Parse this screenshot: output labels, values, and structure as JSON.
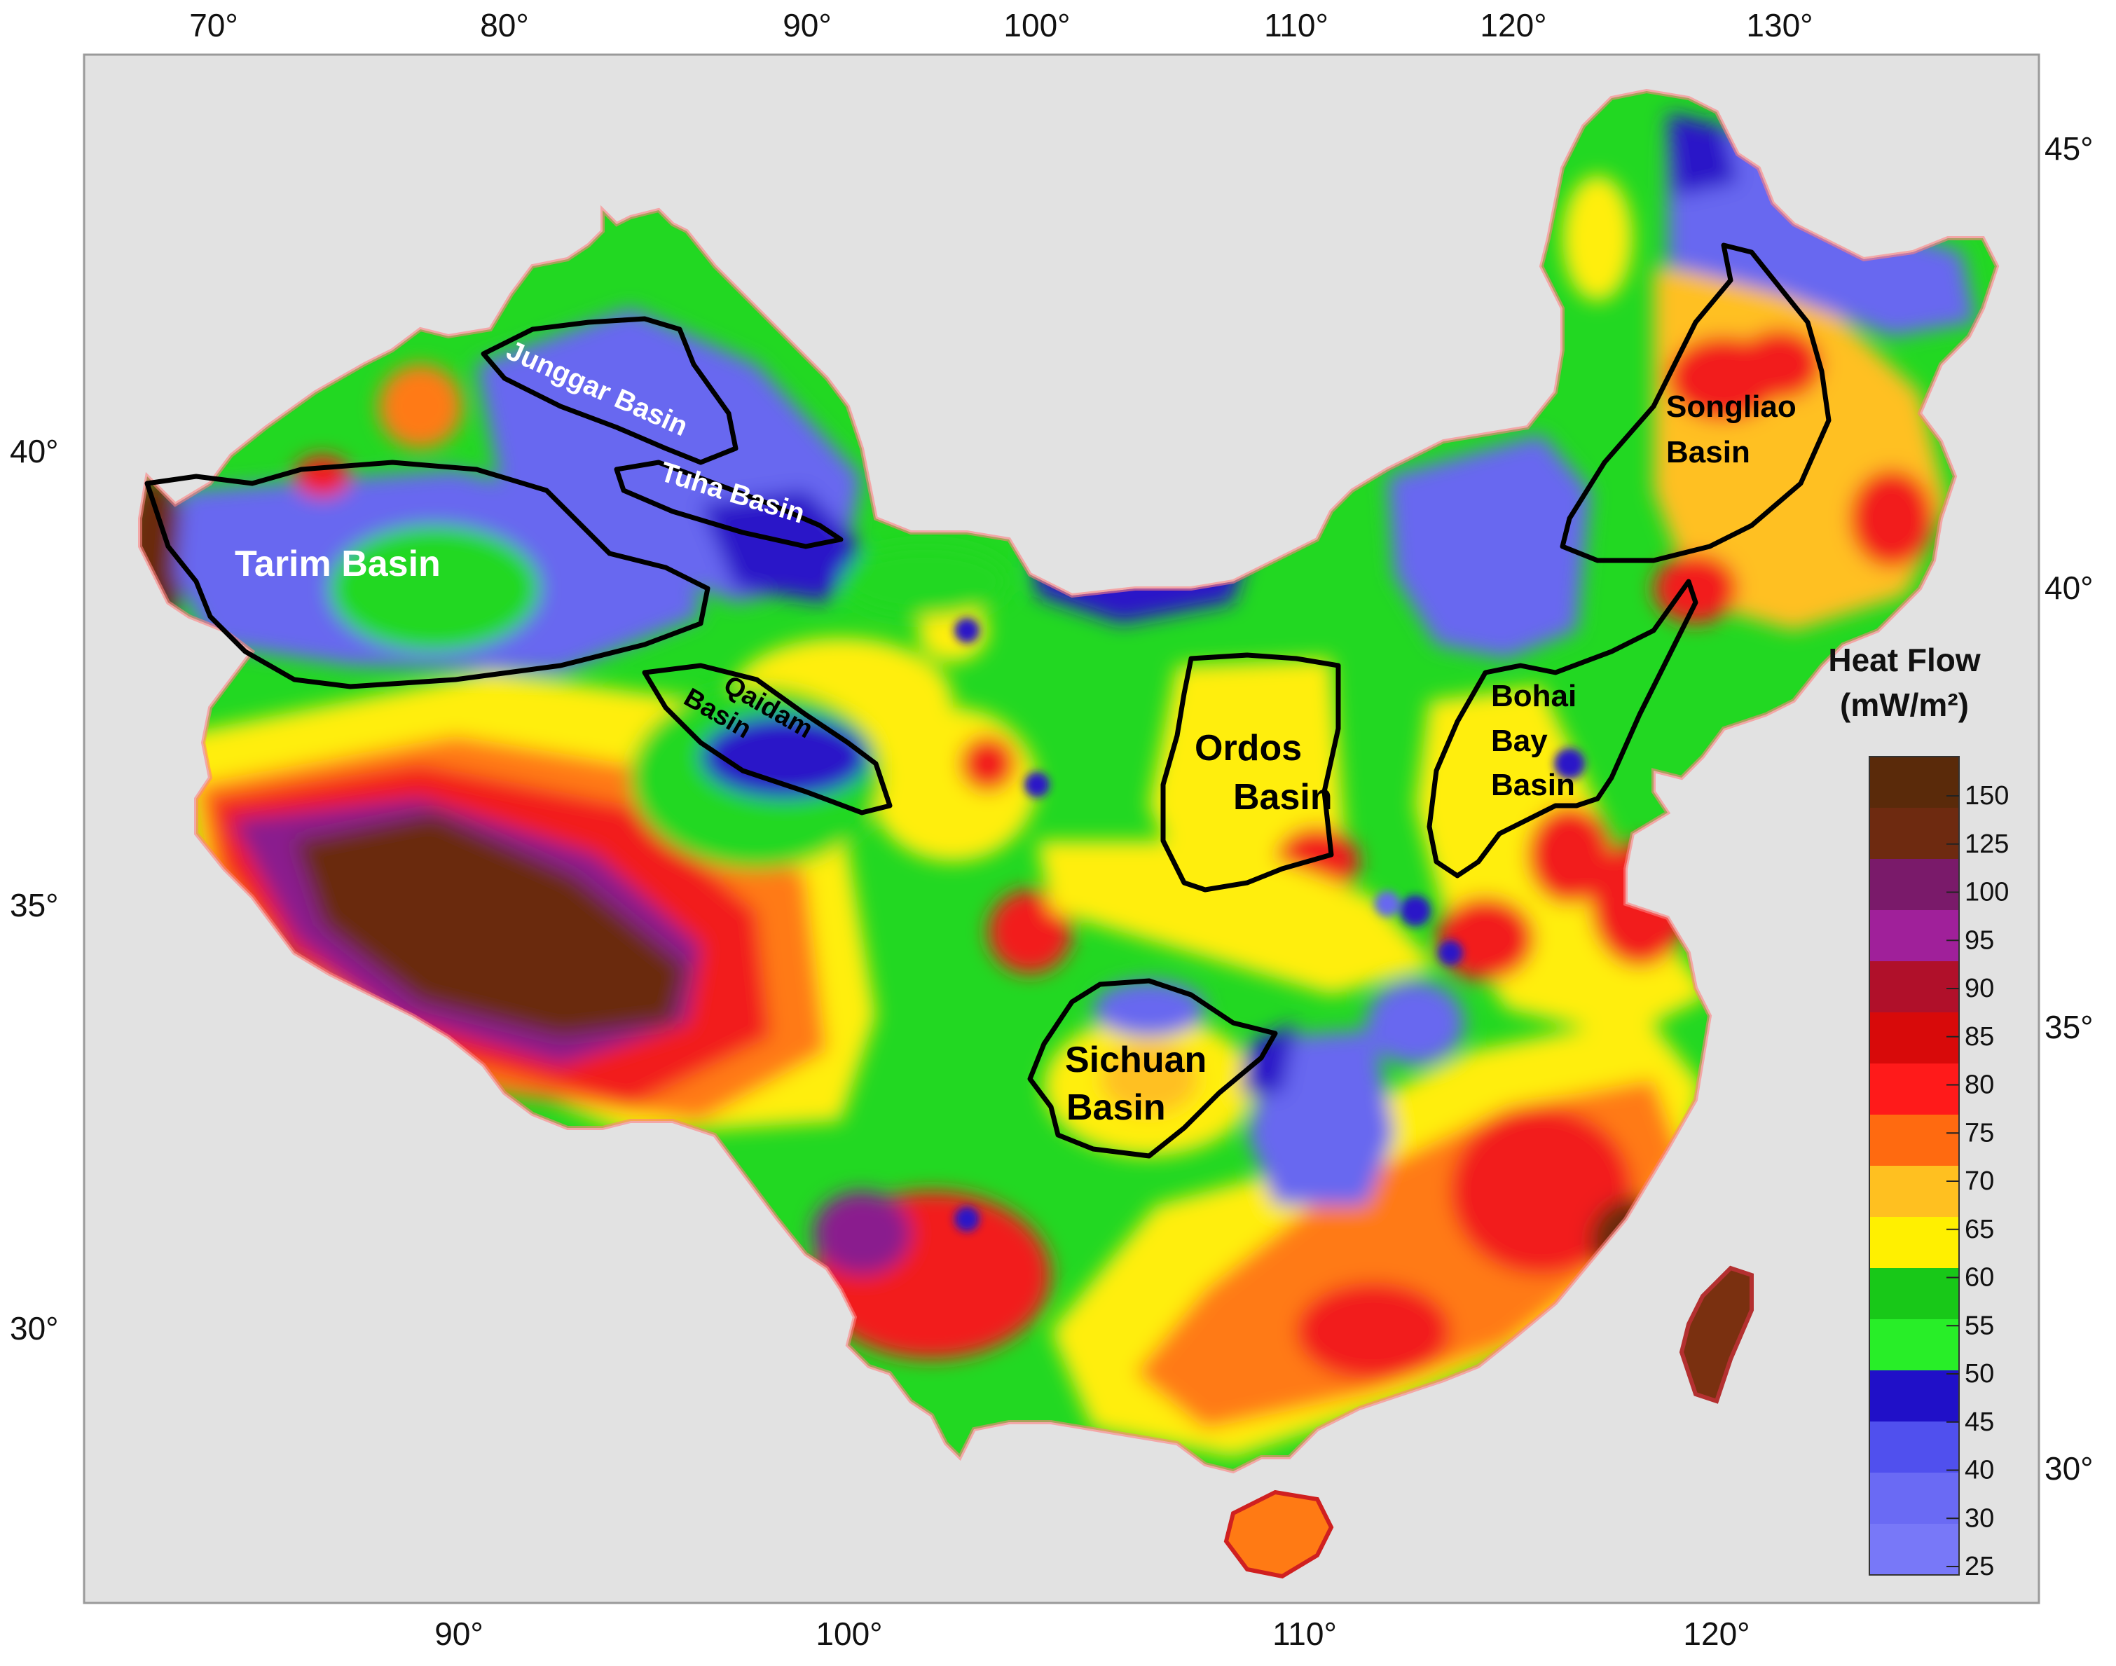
{
  "map": {
    "axes": {
      "top_longitude": [
        "70°",
        "80°",
        "90°",
        "100°",
        "110°",
        "120°",
        "130°"
      ],
      "bottom_longitude": [
        "90°",
        "100°",
        "110°",
        "120°"
      ],
      "left_latitude": [
        "40°",
        "35°",
        "30°"
      ],
      "right_latitude": [
        "45°",
        "40°",
        "35°",
        "30°"
      ]
    },
    "basins": [
      {
        "id": "junggar",
        "label": "Junggar Basin",
        "lines": [
          "Junggar Basin"
        ],
        "text_color": "white"
      },
      {
        "id": "tuha",
        "label": "Tuha Basin",
        "lines": [
          "Tuha Basin"
        ],
        "text_color": "white"
      },
      {
        "id": "tarim",
        "label": "Tarim Basin",
        "lines": [
          "Tarim Basin"
        ],
        "text_color": "white"
      },
      {
        "id": "qaidam",
        "label": "Qaidam Basin",
        "lines": [
          "Qaidam",
          "Basin"
        ],
        "text_color": "black"
      },
      {
        "id": "ordos",
        "label": "Ordos Basin",
        "lines": [
          "Ordos",
          "Basin"
        ],
        "text_color": "black"
      },
      {
        "id": "sichuan",
        "label": "Sichuan Basin",
        "lines": [
          "Sichuan",
          "Basin"
        ],
        "text_color": "black"
      },
      {
        "id": "bohai",
        "label": "Bohai Bay Basin",
        "lines": [
          "Bohai",
          "Bay",
          "Basin"
        ],
        "text_color": "black"
      },
      {
        "id": "songliao",
        "label": "Songliao Basin",
        "lines": [
          "Songliao",
          "Basin"
        ],
        "text_color": "black"
      }
    ],
    "legend": {
      "title_line1": "Heat Flow",
      "title_line2": "(mW/m²)",
      "ticks": [
        "150",
        "125",
        "100",
        "95",
        "90",
        "85",
        "80",
        "75",
        "70",
        "65",
        "60",
        "55",
        "50",
        "45",
        "40",
        "30",
        "25"
      ],
      "bands": [
        {
          "value": "150",
          "color": "#5a2a0a"
        },
        {
          "value": "125",
          "color": "#6e2a10"
        },
        {
          "value": "100",
          "color": "#7a1a6a"
        },
        {
          "value": "95",
          "color": "#a0209a"
        },
        {
          "value": "90",
          "color": "#b0102a"
        },
        {
          "value": "85",
          "color": "#d80a0a"
        },
        {
          "value": "80",
          "color": "#ff1a1a"
        },
        {
          "value": "75",
          "color": "#ff6a10"
        },
        {
          "value": "70",
          "color": "#ffc020"
        },
        {
          "value": "65",
          "color": "#fff000"
        },
        {
          "value": "60",
          "color": "#18c818"
        },
        {
          "value": "55",
          "color": "#28ee28"
        },
        {
          "value": "50",
          "color": "#2010c8"
        },
        {
          "value": "45",
          "color": "#5050ee"
        },
        {
          "value": "40",
          "color": "#6a6af4"
        },
        {
          "value": "30",
          "color": "#7878f8"
        }
      ]
    },
    "colors": {
      "background": "#e2e2e2",
      "brown": "#6b2a10",
      "purple": "#8a1f8e",
      "red": "#f21a1a",
      "orange": "#ff7a14",
      "yellow": "#ffee10",
      "green": "#22d822",
      "dark_blue": "#2a14c8",
      "light_blue": "#6868f0",
      "outline": "#000000"
    }
  }
}
